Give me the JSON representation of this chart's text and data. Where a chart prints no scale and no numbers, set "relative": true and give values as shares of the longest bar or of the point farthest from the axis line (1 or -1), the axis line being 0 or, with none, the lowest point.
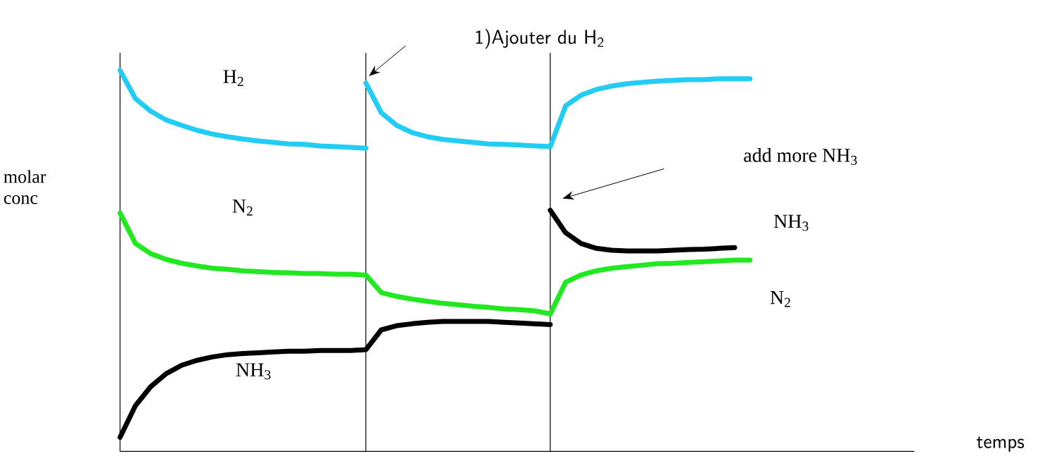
{
  "chart_data": {
    "type": "line",
    "relative": true,
    "categories": [
      null,
      null,
      null,
      null,
      null,
      null,
      null,
      null,
      null,
      null,
      null,
      null,
      null,
      null,
      null,
      null,
      null,
      null,
      null,
      null,
      null,
      null,
      null,
      null,
      null,
      null,
      null,
      null,
      null,
      null,
      null,
      null,
      null,
      null,
      null,
      null,
      null,
      null,
      null,
      null,
      null,
      null
    ],
    "ylabel": "molar conc",
    "grid": "x",
    "annotations": [
      "1)Ajouter du H$_{2}$",
      "add more NH$_{3}$",
      "temps"
    ],
    "series": [
      {
        "name": "H$_{2}$",
        "color": "#22ccf2",
        "values": [
          1.0,
          0.926,
          0.893,
          0.87,
          0.856,
          0.843,
          0.833,
          0.826,
          0.82,
          0.815,
          0.811,
          0.807,
          0.806,
          0.802,
          0.8,
          0.798,
          0.796,
          null,
          null,
          null,
          null,
          null,
          null,
          null,
          null,
          null,
          null,
          null,
          null,
          null,
          null,
          null,
          null,
          null,
          null,
          null,
          null,
          null,
          null,
          null,
          null,
          null
        ]
      },
      {
        "color": "#22ccf2",
        "values": [
          null,
          null,
          null,
          null,
          null,
          null,
          null,
          null,
          null,
          null,
          null,
          null,
          null,
          null,
          null,
          null,
          0.967,
          0.889,
          0.856,
          0.837,
          0.826,
          0.819,
          0.815,
          0.811,
          0.807,
          0.806,
          0.804,
          0.802,
          0.8,
          0.907,
          0.935,
          0.95,
          0.959,
          0.965,
          0.969,
          0.972,
          0.974,
          0.976,
          0.976,
          0.978,
          0.978,
          0.978
        ]
      },
      {
        "name": "N$_{2}$",
        "color": "#22e822",
        "values": [
          0.626,
          0.546,
          0.519,
          0.504,
          0.494,
          0.487,
          0.481,
          0.478,
          0.474,
          0.472,
          0.47,
          0.469,
          0.467,
          0.467,
          0.465,
          0.465,
          0.463,
          0.417,
          0.407,
          0.4,
          0.394,
          0.389,
          0.385,
          0.381,
          0.378,
          0.374,
          0.372,
          0.369,
          0.361,
          null,
          null,
          null,
          null,
          null,
          null,
          null,
          null,
          null,
          null,
          null,
          null,
          null
        ]
      },
      {
        "name": "N$_{2}$",
        "color": "#22e822",
        "values": [
          null,
          null,
          null,
          null,
          null,
          null,
          null,
          null,
          null,
          null,
          null,
          null,
          null,
          null,
          null,
          null,
          null,
          null,
          null,
          null,
          null,
          null,
          null,
          null,
          null,
          null,
          null,
          null,
          0.361,
          0.444,
          0.463,
          0.474,
          0.481,
          0.485,
          0.489,
          0.493,
          0.494,
          0.496,
          0.498,
          0.5,
          0.502,
          0.502
        ]
      },
      {
        "name": "NH$_{3}$",
        "color": "#000000",
        "values": [
          0.037,
          0.12,
          0.17,
          0.204,
          0.226,
          0.239,
          0.248,
          0.254,
          0.257,
          0.259,
          0.261,
          0.263,
          0.263,
          0.265,
          0.265,
          0.265,
          0.267,
          0.319,
          0.33,
          0.335,
          0.339,
          0.341,
          0.341,
          0.341,
          0.341,
          0.339,
          0.337,
          0.335,
          0.333,
          null,
          null,
          null,
          null,
          null,
          null,
          null,
          null,
          null,
          null,
          null,
          null,
          null
        ]
      },
      {
        "name": "NH$_{3}$",
        "color": "#000000",
        "values": [
          null,
          null,
          null,
          null,
          null,
          null,
          null,
          null,
          null,
          null,
          null,
          null,
          null,
          null,
          null,
          null,
          null,
          null,
          null,
          null,
          null,
          null,
          null,
          null,
          null,
          null,
          null,
          null,
          0.633,
          0.574,
          0.546,
          0.533,
          0.528,
          0.526,
          0.526,
          0.526,
          0.528,
          0.53,
          0.531,
          0.533,
          0.535,
          null
        ]
      }
    ]
  }
}
